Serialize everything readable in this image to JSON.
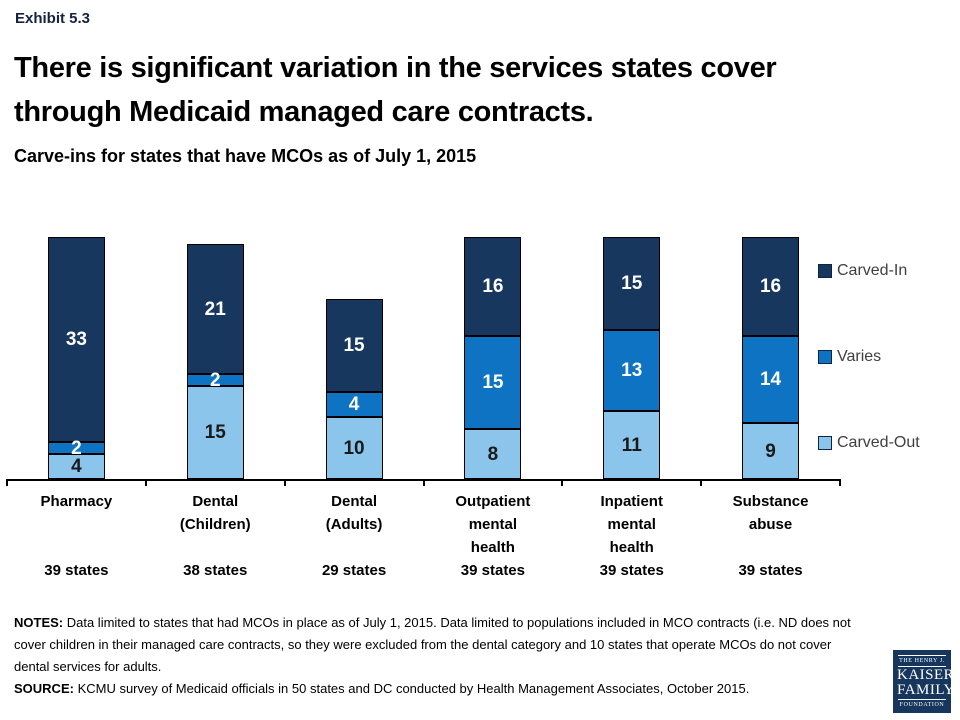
{
  "header": {
    "exhibit": "Exhibit 5.3",
    "title_line1": "There is significant variation in the services states cover",
    "title_line2": "through Medicaid managed care contracts.",
    "subtitle": "Carve-ins for states that have MCOs as of July 1, 2015"
  },
  "chart_data": {
    "type": "bar",
    "stacked": true,
    "unit": "states",
    "grid": false,
    "legend_position": "right",
    "ylim": [
      0,
      40
    ],
    "categories": [
      {
        "label_lines": [
          "Pharmacy"
        ],
        "states": "39 states",
        "total": 39
      },
      {
        "label_lines": [
          "Dental",
          "(Children)"
        ],
        "states": "38 states",
        "total": 38
      },
      {
        "label_lines": [
          "Dental",
          "(Adults)"
        ],
        "states": "29 states",
        "total": 29
      },
      {
        "label_lines": [
          "Outpatient",
          "mental",
          "health"
        ],
        "states": "39 states",
        "total": 39
      },
      {
        "label_lines": [
          "Inpatient",
          "mental",
          "health"
        ],
        "states": "39 states",
        "total": 39
      },
      {
        "label_lines": [
          "Substance",
          "abuse"
        ],
        "states": "39 states",
        "total": 39
      }
    ],
    "series": [
      {
        "name": "Carved-In",
        "color": "#17375e",
        "label_color": "#ffffff",
        "values": [
          33,
          21,
          15,
          16,
          15,
          16
        ]
      },
      {
        "name": "Varies",
        "color": "#0d73c2",
        "label_color": "#ffffff",
        "values": [
          2,
          2,
          4,
          15,
          13,
          14
        ]
      },
      {
        "name": "Carved-Out",
        "color": "#8cc5ec",
        "label_color": "#1a1a1a",
        "values": [
          4,
          15,
          10,
          8,
          11,
          9
        ]
      }
    ]
  },
  "notes": {
    "notes_label": "NOTES:",
    "notes_text": " Data limited to states that had MCOs in place as of July 1, 2015. Data limited to populations included in MCO contracts (i.e. ND does not cover children in their managed care contracts, so they were excluded from the dental category and 10 states that operate MCOs do not cover dental services for adults.",
    "source_label": "SOURCE:",
    "source_text": " KCMU survey of Medicaid officials in 50 states and DC conducted by Health Management Associates, October 2015."
  },
  "logo": {
    "line1": "THE HENRY J.",
    "line2": "KAISER",
    "line3": "FAMILY",
    "line4": "FOUNDATION"
  }
}
